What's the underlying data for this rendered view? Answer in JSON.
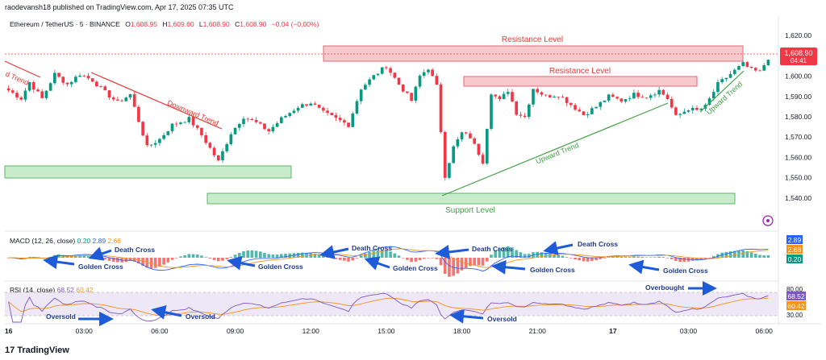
{
  "publisher_line": "raodevansh18 published on TradingView.com, Apr 17, 2025 07:35 UTC",
  "footer_brand": "TradingView",
  "symbol": {
    "name": "Ethereum / TetherUS · 5 · BINANCE",
    "open_label": "O",
    "open": "1,608.95",
    "high_label": "H",
    "high": "1,609.60",
    "low_label": "L",
    "low": "1,608.90",
    "close_label": "C",
    "close": "1,608.90",
    "change": "−0.04 (−0.00%)"
  },
  "colors": {
    "up": "#089981",
    "down": "#f23645",
    "accent": "#2962ff",
    "resistance_fill": "#f8c9cc",
    "resistance_stroke": "#e06a72",
    "support_fill": "#c8eccb",
    "support_stroke": "#5db865",
    "trend_down": "#e53935",
    "trend_up": "#43a047",
    "rsi_line": "#7e57c2",
    "rsi_ma": "#f7931a",
    "arrow": "#1e5bd8"
  },
  "current_price_tag": {
    "price": "1,608.90",
    "countdown": "04:41"
  },
  "annotations": {
    "resistance_top": "Resistance Level",
    "resistance_mid": "Resistance Level",
    "support": "Support Level",
    "downward_trend": "Downward Trend",
    "upward_trend_1": "Upward Trend",
    "upward_trend_2": "Upward Trend",
    "left_trend_fragment": "d Trend"
  },
  "macd": {
    "label": "MACD (12, 26, close)",
    "values": [
      "0.20",
      "2.89",
      "2.68"
    ],
    "scale_badges": [
      {
        "text": "2.89",
        "color": "#2962ff"
      },
      {
        "text": "2.68",
        "color": "#f7931a"
      },
      {
        "text": "0.20",
        "color": "#089981"
      }
    ],
    "annotations": [
      "Death Cross",
      "Golden Cross",
      "Golden Cross",
      "Death Cross",
      "Golden Cross",
      "Death Cross",
      "Golden Cross",
      "Death Cross",
      "Golden Cross"
    ]
  },
  "rsi": {
    "label": "RSI (14, close)",
    "values": [
      "68.52",
      "60.42"
    ],
    "scale": {
      "top": "80.00",
      "bottom": "30.00"
    },
    "badges": [
      {
        "text": "68.52",
        "color": "#7e57c2"
      },
      {
        "text": "60.42",
        "color": "#f7931a"
      }
    ],
    "annotations": [
      "Oversold",
      "Oversold",
      "Oversold",
      "Overbought"
    ]
  },
  "chart_data": {
    "type": "candlestick",
    "title": "Ethereum / TetherUS · 5 · BINANCE",
    "y_ticks": [
      "1,620.00",
      "1,610.00",
      "1,600.00",
      "1,590.00",
      "1,580.00",
      "1,570.00",
      "1,560.00",
      "1,550.00",
      "1,540.00"
    ],
    "y_tick_values": [
      1620,
      1610,
      1600,
      1590,
      1580,
      1570,
      1560,
      1550,
      1540
    ],
    "ylim": [
      1536,
      1624
    ],
    "x_ticks": [
      "16",
      "03:00",
      "06:00",
      "09:00",
      "12:00",
      "15:00",
      "18:00",
      "21:00",
      "17",
      "03:00",
      "06:00"
    ],
    "close_path": [
      {
        "t": 0,
        "p": 1593
      },
      {
        "t": 3,
        "p": 1589
      },
      {
        "t": 5,
        "p": 1597
      },
      {
        "t": 8,
        "p": 1589
      },
      {
        "t": 11,
        "p": 1601
      },
      {
        "t": 14,
        "p": 1596
      },
      {
        "t": 17,
        "p": 1601
      },
      {
        "t": 20,
        "p": 1598
      },
      {
        "t": 23,
        "p": 1592
      },
      {
        "t": 26,
        "p": 1587
      },
      {
        "t": 29,
        "p": 1591
      },
      {
        "t": 33,
        "p": 1565
      },
      {
        "t": 36,
        "p": 1569
      },
      {
        "t": 39,
        "p": 1576
      },
      {
        "t": 43,
        "p": 1579
      },
      {
        "t": 46,
        "p": 1571
      },
      {
        "t": 50,
        "p": 1558
      },
      {
        "t": 53,
        "p": 1572
      },
      {
        "t": 56,
        "p": 1580
      },
      {
        "t": 59,
        "p": 1577
      },
      {
        "t": 62,
        "p": 1573
      },
      {
        "t": 65,
        "p": 1579
      },
      {
        "t": 69,
        "p": 1585
      },
      {
        "t": 72,
        "p": 1587
      },
      {
        "t": 75,
        "p": 1582
      },
      {
        "t": 78,
        "p": 1579
      },
      {
        "t": 81,
        "p": 1576
      },
      {
        "t": 84,
        "p": 1594
      },
      {
        "t": 87,
        "p": 1600
      },
      {
        "t": 90,
        "p": 1605
      },
      {
        "t": 93,
        "p": 1596
      },
      {
        "t": 96,
        "p": 1588
      },
      {
        "t": 98,
        "p": 1600
      },
      {
        "t": 100,
        "p": 1604
      },
      {
        "t": 102,
        "p": 1595
      },
      {
        "t": 104,
        "p": 1551
      },
      {
        "t": 106,
        "p": 1565
      },
      {
        "t": 108,
        "p": 1572
      },
      {
        "t": 110,
        "p": 1570
      },
      {
        "t": 113,
        "p": 1558
      },
      {
        "t": 115,
        "p": 1592
      },
      {
        "t": 117,
        "p": 1588
      },
      {
        "t": 119,
        "p": 1593
      },
      {
        "t": 121,
        "p": 1582
      },
      {
        "t": 123,
        "p": 1580
      },
      {
        "t": 125,
        "p": 1594
      },
      {
        "t": 128,
        "p": 1590
      },
      {
        "t": 131,
        "p": 1591
      },
      {
        "t": 134,
        "p": 1586
      },
      {
        "t": 137,
        "p": 1581
      },
      {
        "t": 140,
        "p": 1585
      },
      {
        "t": 143,
        "p": 1590
      },
      {
        "t": 146,
        "p": 1588
      },
      {
        "t": 149,
        "p": 1591
      },
      {
        "t": 152,
        "p": 1590
      },
      {
        "t": 155,
        "p": 1593
      },
      {
        "t": 157,
        "p": 1589
      },
      {
        "t": 159,
        "p": 1580
      },
      {
        "t": 162,
        "p": 1584
      },
      {
        "t": 164,
        "p": 1583
      },
      {
        "t": 166,
        "p": 1585
      },
      {
        "t": 169,
        "p": 1596
      },
      {
        "t": 172,
        "p": 1601
      },
      {
        "t": 175,
        "p": 1606
      },
      {
        "t": 177,
        "p": 1603
      },
      {
        "t": 179,
        "p": 1602
      },
      {
        "t": 181,
        "p": 1609
      }
    ],
    "total_bars": 182
  }
}
